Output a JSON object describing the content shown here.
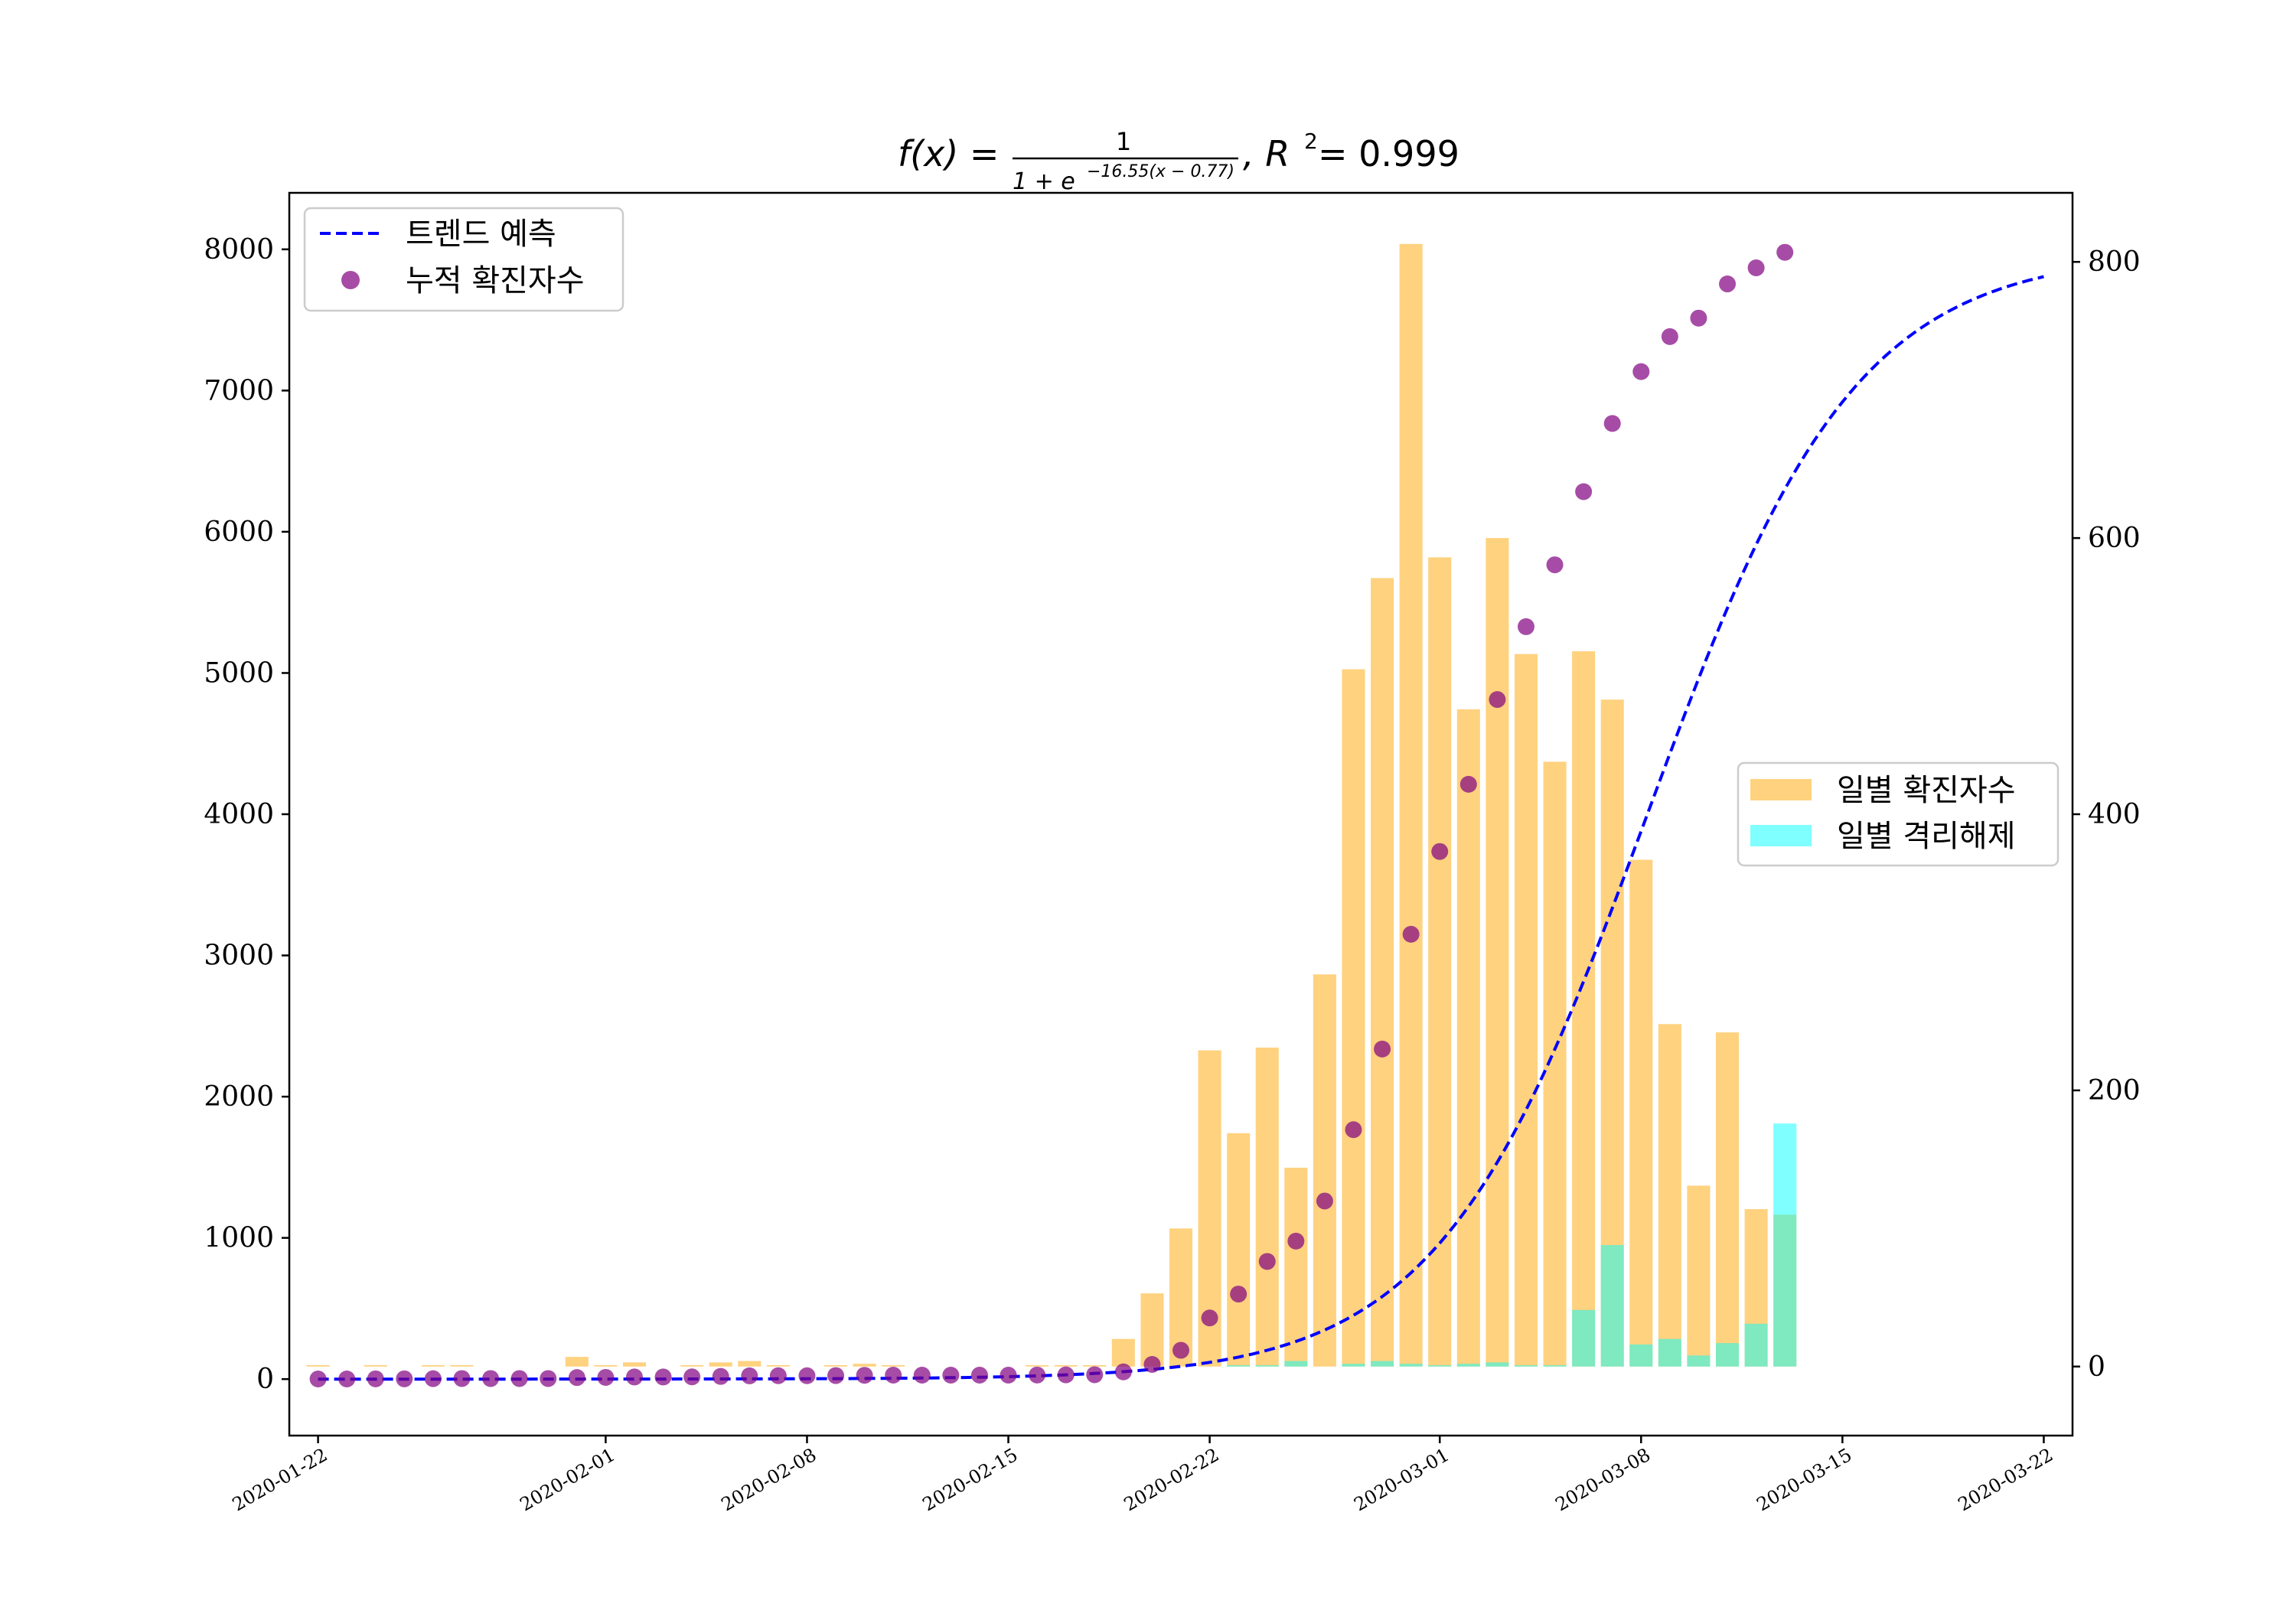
{
  "chart_data": {
    "type": "combo",
    "title": {
      "lhs": "f(x) = ",
      "numerator": "1",
      "denominator_prefix": "1 + e",
      "exponent": "−16.55(x − 0.77)",
      "r2_label": ", R",
      "r2_power": "2",
      "r2_value": " = 0.999"
    },
    "x_axis": {
      "type": "date",
      "range": [
        "2020-01-21",
        "2020-03-23"
      ],
      "ticks": [
        "2020-01-22",
        "2020-02-01",
        "2020-02-08",
        "2020-02-15",
        "2020-02-22",
        "2020-03-01",
        "2020-03-08",
        "2020-03-15",
        "2020-03-22"
      ]
    },
    "y_left": {
      "range": [
        -400,
        8400
      ],
      "ticks": [
        0,
        1000,
        2000,
        3000,
        4000,
        5000,
        6000,
        7000,
        8000
      ]
    },
    "y_right": {
      "range": [
        -50,
        850
      ],
      "ticks": [
        0,
        200,
        400,
        600,
        800
      ]
    },
    "legend_left": {
      "position": "upper-left",
      "entries": [
        "트렌드 예측",
        "누적 확진자수"
      ]
    },
    "legend_right": {
      "position": "center-right",
      "entries": [
        "일별 확진자수",
        "일별 격리해제"
      ]
    },
    "dates": [
      "2020-01-22",
      "2020-01-23",
      "2020-01-24",
      "2020-01-25",
      "2020-01-26",
      "2020-01-27",
      "2020-01-28",
      "2020-01-29",
      "2020-01-30",
      "2020-01-31",
      "2020-02-01",
      "2020-02-02",
      "2020-02-03",
      "2020-02-04",
      "2020-02-05",
      "2020-02-06",
      "2020-02-07",
      "2020-02-08",
      "2020-02-09",
      "2020-02-10",
      "2020-02-11",
      "2020-02-12",
      "2020-02-13",
      "2020-02-14",
      "2020-02-15",
      "2020-02-16",
      "2020-02-17",
      "2020-02-18",
      "2020-02-19",
      "2020-02-20",
      "2020-02-21",
      "2020-02-22",
      "2020-02-23",
      "2020-02-24",
      "2020-02-25",
      "2020-02-26",
      "2020-02-27",
      "2020-02-28",
      "2020-02-29",
      "2020-03-01",
      "2020-03-02",
      "2020-03-03",
      "2020-03-04",
      "2020-03-05",
      "2020-03-06",
      "2020-03-07",
      "2020-03-08",
      "2020-03-09",
      "2020-03-10",
      "2020-03-11",
      "2020-03-12",
      "2020-03-13"
    ],
    "series": [
      {
        "name": "누적 확진자수",
        "kind": "scatter",
        "axis": "left",
        "color": "#800080",
        "values": [
          1,
          1,
          2,
          2,
          3,
          4,
          4,
          4,
          4,
          11,
          12,
          15,
          15,
          16,
          19,
          23,
          24,
          24,
          25,
          27,
          28,
          28,
          28,
          28,
          28,
          29,
          30,
          31,
          51,
          104,
          204,
          433,
          602,
          833,
          977,
          1261,
          1766,
          2337,
          3150,
          3736,
          4212,
          4812,
          5328,
          5766,
          6284,
          6767,
          7134,
          7382,
          7513,
          7755,
          7869,
          7979
        ]
      },
      {
        "name": "일별 확진자수",
        "kind": "bar",
        "axis": "right",
        "color": "#ffa500",
        "values": [
          1,
          0,
          1,
          0,
          1,
          1,
          0,
          0,
          0,
          7,
          1,
          3,
          0,
          1,
          3,
          4,
          1,
          0,
          1,
          2,
          1,
          0,
          0,
          0,
          0,
          1,
          1,
          1,
          20,
          53,
          100,
          229,
          169,
          231,
          144,
          284,
          505,
          571,
          813,
          586,
          476,
          600,
          516,
          438,
          518,
          483,
          367,
          248,
          131,
          242,
          114,
          110
        ]
      },
      {
        "name": "일별 격리해제",
        "kind": "bar",
        "axis": "right",
        "color": "#00ffff",
        "values": [
          0,
          0,
          0,
          0,
          0,
          0,
          0,
          0,
          0,
          0,
          0,
          0,
          0,
          0,
          0,
          0,
          0,
          0,
          0,
          0,
          0,
          0,
          0,
          0,
          0,
          0,
          0,
          0,
          0,
          0,
          0,
          0,
          1,
          1,
          4,
          0,
          2,
          4,
          2,
          1,
          2,
          3,
          1,
          1,
          41,
          88,
          16,
          20,
          8,
          17,
          31,
          176
        ]
      },
      {
        "name": "트렌드 예측",
        "kind": "line",
        "axis": "left",
        "color": "#0000ff",
        "x_start": "2020-01-22",
        "x_end": "2020-03-22",
        "logistic": {
          "k": 16.55,
          "x0": 0.77,
          "scale": 7980
        }
      }
    ]
  }
}
